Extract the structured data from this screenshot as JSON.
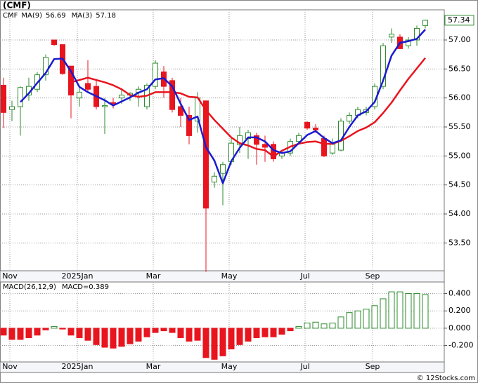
{
  "source": "© 12Stocks.com",
  "chart_data": [
    {
      "type": "candlestick",
      "title": "(CMF)",
      "categories": [
        null,
        "Nov",
        null,
        null,
        null,
        null,
        null,
        null,
        null,
        "2025Jan",
        null,
        null,
        null,
        null,
        null,
        null,
        null,
        null,
        "Mar",
        null,
        null,
        null,
        null,
        null,
        null,
        null,
        null,
        "May",
        null,
        null,
        null,
        null,
        null,
        null,
        null,
        null,
        "Jul",
        null,
        null,
        null,
        null,
        null,
        null,
        null,
        "Sep",
        null,
        null,
        null,
        null,
        null,
        null
      ],
      "ylim": [
        53.02,
        57.52
      ],
      "yticks": [
        {
          "value": 57,
          "label": "57.00"
        },
        {
          "value": 56.5,
          "label": "56.50"
        },
        {
          "value": 56,
          "label": "56.00"
        },
        {
          "value": 55.5,
          "label": "55.50"
        },
        {
          "value": 55,
          "label": "55.00"
        },
        {
          "value": 54.5,
          "label": "54.50"
        },
        {
          "value": 54,
          "label": "54.00"
        },
        {
          "value": 53.5,
          "label": "53.50"
        }
      ],
      "grid": true,
      "series": [
        {
          "name": "CMF",
          "type": "candlestick",
          "up_color": "#2e8b2e",
          "down_color": "#e8141e",
          "open": [
            56.22,
            55.8,
            55.85,
            56.05,
            56.15,
            56.4,
            57.0,
            56.92,
            56.55,
            56.0,
            56.25,
            56.2,
            55.85,
            55.92,
            56.0,
            56.05,
            56.1,
            55.85,
            56.2,
            56.45,
            56.3,
            55.85,
            55.7,
            55.6,
            55.95,
            54.55,
            54.7,
            54.9,
            55.2,
            55.3,
            55.35,
            55.2,
            55.2,
            55.0,
            55.05,
            55.25,
            55.58,
            55.48,
            55.3,
            55.05,
            55.1,
            55.6,
            55.7,
            55.75,
            55.85,
            56.2,
            57.05,
            57.05,
            56.9,
            57.0,
            57.25
          ],
          "high": [
            56.35,
            55.95,
            56.2,
            56.35,
            56.45,
            56.75,
            57.0,
            56.92,
            56.55,
            56.2,
            56.65,
            56.3,
            56.0,
            56.0,
            56.15,
            56.1,
            56.2,
            56.25,
            56.65,
            56.55,
            56.35,
            56.0,
            55.85,
            56.1,
            55.95,
            54.72,
            54.9,
            55.3,
            55.5,
            55.45,
            55.4,
            55.35,
            55.25,
            55.1,
            55.3,
            55.4,
            55.6,
            55.55,
            55.35,
            55.3,
            55.65,
            55.75,
            55.85,
            55.85,
            56.25,
            56.95,
            57.2,
            57.1,
            57.05,
            57.25,
            57.35
          ],
          "low": [
            55.48,
            55.6,
            55.35,
            55.95,
            56.1,
            56.3,
            56.9,
            56.4,
            55.65,
            55.85,
            56.1,
            55.8,
            55.38,
            55.82,
            55.9,
            55.95,
            55.85,
            55.8,
            56.15,
            56.0,
            55.75,
            55.5,
            55.2,
            55.4,
            53.0,
            54.45,
            54.15,
            54.85,
            55.05,
            54.95,
            54.85,
            54.9,
            54.9,
            54.95,
            55.0,
            55.2,
            55.45,
            55.4,
            54.98,
            55.02,
            55.08,
            55.55,
            55.65,
            55.7,
            55.8,
            56.15,
            56.95,
            56.85,
            56.85,
            56.9,
            57.2
          ],
          "close": [
            55.75,
            55.85,
            56.18,
            56.2,
            56.4,
            56.7,
            56.92,
            56.42,
            56.05,
            56.1,
            56.15,
            55.85,
            55.87,
            55.9,
            56.05,
            56.08,
            56.15,
            56.22,
            56.6,
            56.2,
            55.8,
            55.7,
            55.35,
            56.0,
            54.1,
            54.65,
            54.85,
            55.22,
            55.35,
            55.4,
            55.2,
            55.15,
            54.95,
            55.05,
            55.25,
            55.35,
            55.48,
            55.45,
            55.0,
            55.2,
            55.6,
            55.7,
            55.8,
            55.8,
            56.2,
            56.9,
            57.1,
            56.85,
            57.0,
            57.2,
            57.34
          ]
        },
        {
          "name": "MA(9)",
          "type": "line",
          "color": "#e8141e",
          "legend_value": "56.69",
          "values": [
            null,
            null,
            null,
            null,
            null,
            null,
            null,
            null,
            56.27,
            56.31,
            56.35,
            56.31,
            56.27,
            56.22,
            56.15,
            56.05,
            56.02,
            56.04,
            56.1,
            56.1,
            56.1,
            56.08,
            56.02,
            56.01,
            55.79,
            55.62,
            55.47,
            55.32,
            55.22,
            55.18,
            55.12,
            55.1,
            54.99,
            55.09,
            55.16,
            55.21,
            55.24,
            55.25,
            55.21,
            55.21,
            55.26,
            55.34,
            55.43,
            55.49,
            55.58,
            55.74,
            55.92,
            56.13,
            56.33,
            56.51,
            56.69
          ]
        },
        {
          "name": "MA(3)",
          "type": "line",
          "color": "#1a1ad0",
          "legend_value": "57.18",
          "values": [
            null,
            null,
            55.93,
            56.08,
            56.26,
            56.43,
            56.67,
            56.68,
            56.46,
            56.19,
            56.1,
            56.03,
            55.96,
            55.87,
            55.94,
            56.01,
            56.09,
            56.15,
            56.32,
            56.34,
            56.2,
            55.9,
            55.62,
            55.68,
            55.15,
            54.92,
            54.53,
            54.91,
            55.14,
            55.32,
            55.32,
            55.25,
            55.1,
            55.05,
            55.08,
            55.22,
            55.36,
            55.43,
            55.31,
            55.22,
            55.27,
            55.5,
            55.7,
            55.77,
            55.93,
            56.3,
            56.73,
            56.95,
            56.98,
            57.02,
            57.18
          ]
        }
      ]
    },
    {
      "type": "bar",
      "title": "MACD(26,12,9)",
      "subtitle": "MACD=0.389",
      "categories": [
        null,
        "Nov",
        null,
        null,
        null,
        null,
        null,
        null,
        null,
        "2025Jan",
        null,
        null,
        null,
        null,
        null,
        null,
        null,
        null,
        "Mar",
        null,
        null,
        null,
        null,
        null,
        null,
        null,
        null,
        "May",
        null,
        null,
        null,
        null,
        null,
        null,
        null,
        null,
        "Jul",
        null,
        null,
        null,
        null,
        null,
        null,
        null,
        "Sep",
        null,
        null,
        null,
        null,
        null,
        null
      ],
      "ylim": [
        -0.39,
        0.534
      ],
      "yticks": [
        {
          "value": 0.4,
          "label": "0.400"
        },
        {
          "value": 0.2,
          "label": "0.200"
        },
        {
          "value": 0,
          "label": "0.000"
        },
        {
          "value": -0.2,
          "label": "-0.200"
        }
      ],
      "grid": true,
      "up_color": "#2e8b2e",
      "down_color": "#e8141e",
      "values": [
        -0.08,
        -0.13,
        -0.13,
        -0.11,
        -0.08,
        -0.02,
        0.02,
        -0.01,
        -0.08,
        -0.11,
        -0.14,
        -0.19,
        -0.22,
        -0.23,
        -0.21,
        -0.18,
        -0.15,
        -0.1,
        -0.05,
        -0.03,
        -0.05,
        -0.11,
        -0.15,
        -0.14,
        -0.34,
        -0.36,
        -0.32,
        -0.24,
        -0.19,
        -0.15,
        -0.11,
        -0.1,
        -0.1,
        -0.07,
        -0.03,
        0.02,
        0.06,
        0.07,
        0.05,
        0.06,
        0.13,
        0.18,
        0.2,
        0.22,
        0.26,
        0.34,
        0.42,
        0.42,
        0.4,
        0.4,
        0.389
      ]
    }
  ]
}
